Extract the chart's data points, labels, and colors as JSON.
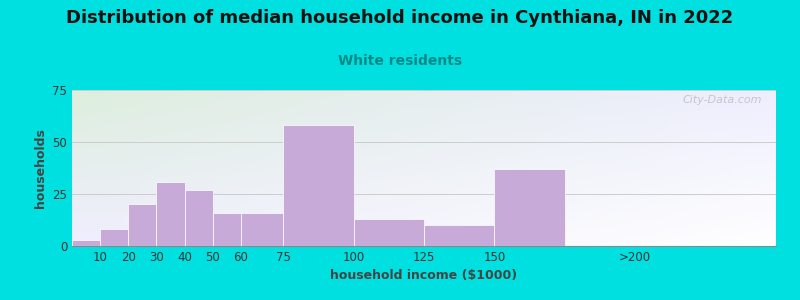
{
  "title": "Distribution of median household income in Cynthiana, IN in 2022",
  "subtitle": "White residents",
  "xlabel": "household income ($1000)",
  "ylabel": "households",
  "bin_edges": [
    0,
    10,
    20,
    30,
    40,
    50,
    60,
    75,
    100,
    125,
    150,
    175,
    250
  ],
  "tick_positions": [
    10,
    20,
    30,
    40,
    50,
    60,
    75,
    100,
    125,
    150,
    200
  ],
  "tick_labels": [
    "10",
    "20",
    "30",
    "40",
    "50",
    "60",
    "75",
    "100",
    "125",
    "150",
    ">200"
  ],
  "values": [
    3,
    8,
    20,
    31,
    27,
    16,
    16,
    58,
    13,
    10,
    37
  ],
  "bar_color": "#c8aad8",
  "bar_edge_color": "#ffffff",
  "ylim": [
    0,
    75
  ],
  "yticks": [
    0,
    25,
    50,
    75
  ],
  "background_outer": "#00e0e0",
  "background_plot_topleft": "#ddeedd",
  "background_plot_right": "#eeeeff",
  "title_fontsize": 13,
  "subtitle_fontsize": 10,
  "subtitle_color": "#008888",
  "axis_label_fontsize": 9,
  "watermark": "City-Data.com"
}
